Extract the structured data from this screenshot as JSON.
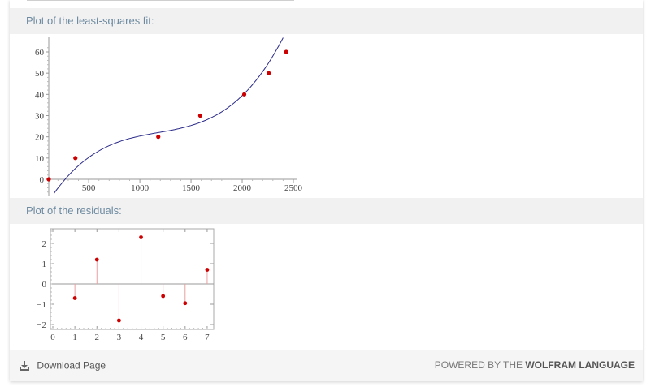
{
  "pods": {
    "fit_title": "Plot of the least-squares fit:",
    "residuals_title": "Plot of the residuals:"
  },
  "footer": {
    "download_label": "Download Page",
    "powered_prefix": "POWERED BY THE",
    "powered_brand": "WOLFRAM LANGUAGE"
  },
  "colors": {
    "curve": "#2a2a8a",
    "points": "#cc0000",
    "stems": "#e8a0a0",
    "pod_title": "#6d8aa0"
  },
  "chart_data": [
    {
      "type": "scatter",
      "title": "",
      "xlabel": "",
      "ylabel": "",
      "xlim": [
        0,
        2500
      ],
      "ylim": [
        -12,
        65
      ],
      "x_ticks": [
        500,
        1000,
        1500,
        2000,
        2500
      ],
      "y_ticks": [
        0,
        10,
        20,
        30,
        40,
        50,
        60
      ],
      "series": [
        {
          "values": [
            [
              110,
              0
            ],
            [
              370,
              10
            ],
            [
              1180,
              20
            ],
            [
              1590,
              30
            ],
            [
              2020,
              40
            ],
            [
              2260,
              50
            ],
            [
              2430,
              60
            ]
          ]
        }
      ],
      "fit_curve": "cubic least-squares fit line"
    },
    {
      "type": "scatter",
      "title": "",
      "xlabel": "",
      "ylabel": "",
      "xlim": [
        0,
        7.2
      ],
      "ylim": [
        -2.3,
        2.7
      ],
      "x_ticks": [
        0,
        1,
        2,
        3,
        4,
        5,
        6,
        7
      ],
      "y_ticks": [
        -2,
        -1,
        0,
        1,
        2
      ],
      "series": [
        {
          "values": [
            [
              1,
              -0.7
            ],
            [
              2,
              1.2
            ],
            [
              3,
              -1.8
            ],
            [
              4,
              2.3
            ],
            [
              5,
              -0.6
            ],
            [
              6,
              -0.95
            ],
            [
              7,
              0.7
            ]
          ]
        }
      ],
      "stems": true
    }
  ]
}
